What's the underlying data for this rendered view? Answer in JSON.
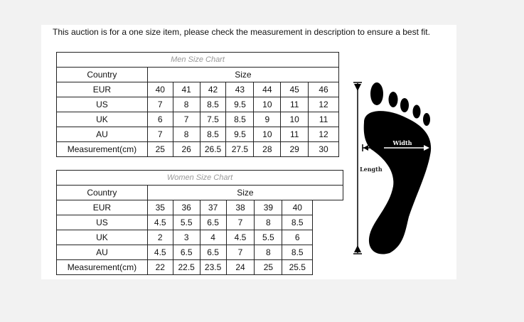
{
  "notice": "This auction is for a one size item, please check the measurement in description to ensure a best fit.",
  "men": {
    "title": "Men Size Chart",
    "country_label": "Country",
    "size_label": "Size",
    "rows": [
      {
        "label": "EUR",
        "values": [
          "40",
          "41",
          "42",
          "43",
          "44",
          "45",
          "46"
        ]
      },
      {
        "label": "US",
        "values": [
          "7",
          "8",
          "8.5",
          "9.5",
          "10",
          "11",
          "12"
        ]
      },
      {
        "label": "UK",
        "values": [
          "6",
          "7",
          "7.5",
          "8.5",
          "9",
          "10",
          "11"
        ]
      },
      {
        "label": "AU",
        "values": [
          "7",
          "8",
          "8.5",
          "9.5",
          "10",
          "11",
          "12"
        ]
      },
      {
        "label": "Measurement(cm)",
        "values": [
          "25",
          "26",
          "26.5",
          "27.5",
          "28",
          "29",
          "30"
        ]
      }
    ]
  },
  "women": {
    "title": "Women Size Chart",
    "country_label": "Country",
    "size_label": "Size",
    "rows": [
      {
        "label": "EUR",
        "values": [
          "35",
          "36",
          "37",
          "38",
          "39",
          "40"
        ]
      },
      {
        "label": "US",
        "values": [
          "4.5",
          "5.5",
          "6.5",
          "7",
          "8",
          "8.5"
        ]
      },
      {
        "label": "UK",
        "values": [
          "2",
          "3",
          "4",
          "4.5",
          "5.5",
          "6"
        ]
      },
      {
        "label": "AU",
        "values": [
          "4.5",
          "6.5",
          "6.5",
          "7",
          "8",
          "8.5"
        ]
      },
      {
        "label": "Measurement(cm)",
        "values": [
          "22",
          "22.5",
          "23.5",
          "24",
          "25",
          "25.5"
        ]
      }
    ]
  },
  "diagram": {
    "width_label": "Width",
    "length_label": "Length",
    "icon": "foot-icon"
  }
}
